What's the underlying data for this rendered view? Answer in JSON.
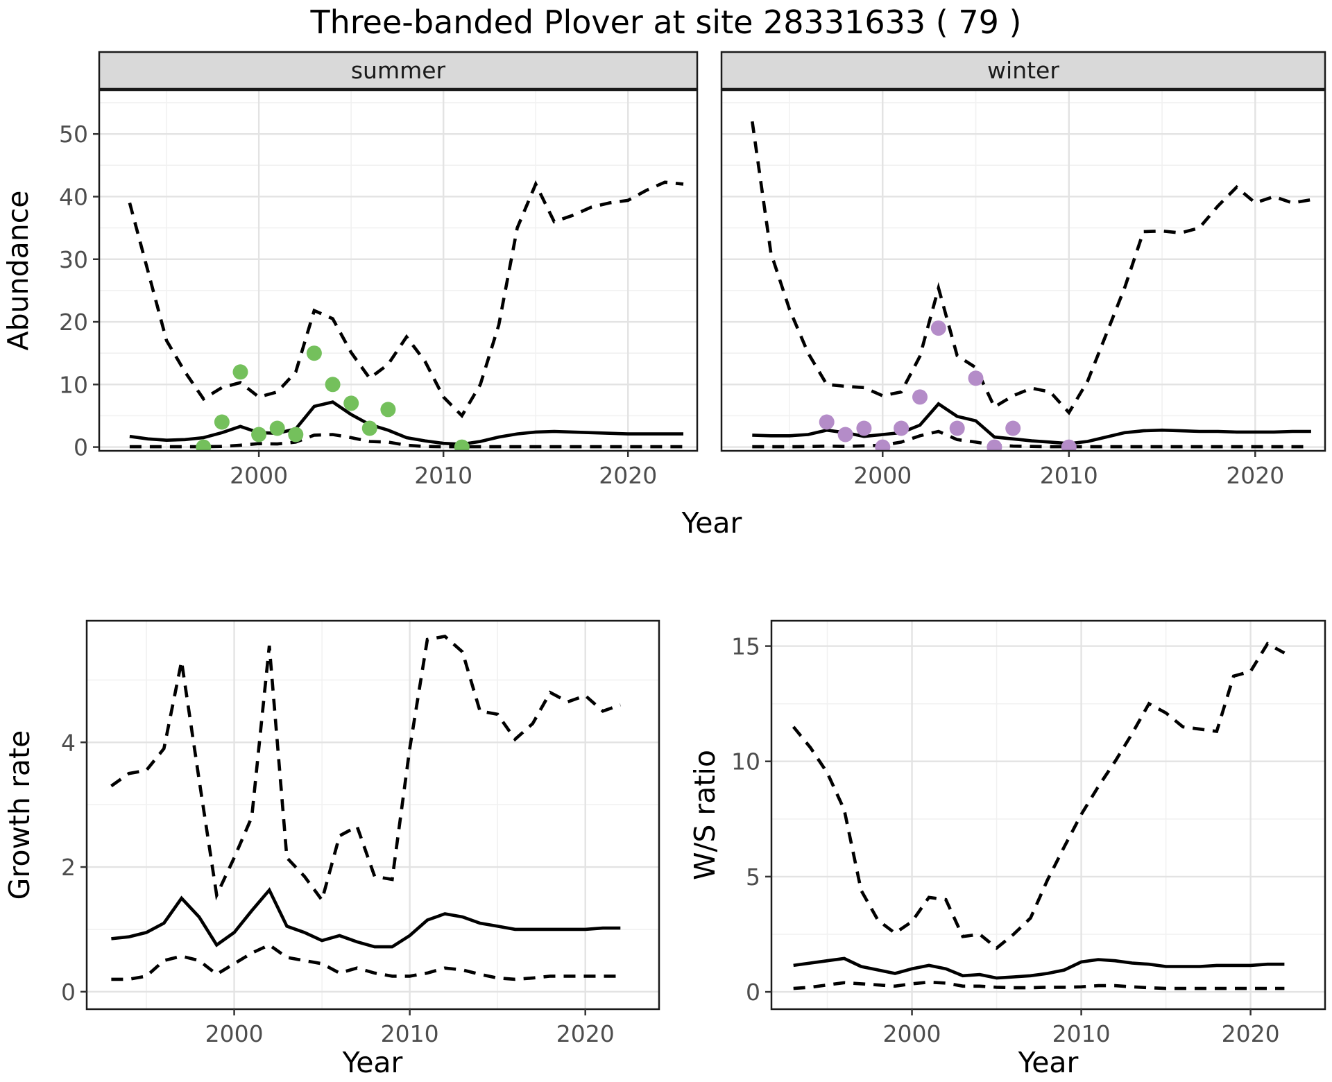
{
  "title": "Three-banded Plover at site 28331633 ( 79 )",
  "colors": {
    "summer_points": "#74c05c",
    "winter_points": "#b48cc8",
    "line": "#000000",
    "grid_major": "#e3e3e3",
    "grid_minor": "#f1f1f1",
    "strip_bg": "#d9d9d9",
    "panel_border": "#1a1a1a",
    "tick_label": "#4d4d4d"
  },
  "chart_data": [
    {
      "id": "abundance-summer",
      "type": "line",
      "facet": "summer",
      "ylabel": "Abundance",
      "xlabel": "Year",
      "grid": true,
      "legend": false,
      "x_ticks": [
        2000,
        2010,
        2020
      ],
      "x_minor": [
        1995,
        2005,
        2015
      ],
      "y_ticks": [
        0,
        10,
        20,
        30,
        40,
        50
      ],
      "y_minor": [
        5,
        15,
        25,
        35,
        45,
        55
      ],
      "xlim": [
        1991.35,
        2023.75
      ],
      "ylim": [
        -0.6,
        57.0
      ],
      "years": [
        1993,
        1994,
        1995,
        1996,
        1997,
        1998,
        1999,
        2000,
        2001,
        2002,
        2003,
        2004,
        2005,
        2006,
        2007,
        2008,
        2009,
        2010,
        2011,
        2012,
        2013,
        2014,
        2015,
        2016,
        2017,
        2018,
        2019,
        2020,
        2021,
        2022,
        2023
      ],
      "series": [
        {
          "name": "upper-ci",
          "style": "dashed",
          "values": [
            39,
            28,
            17,
            12,
            7.7,
            9.5,
            10.3,
            8.0,
            8.8,
            12,
            21.8,
            20.5,
            15.1,
            11,
            13.2,
            17.6,
            13.7,
            8,
            5,
            10,
            19.5,
            35,
            42,
            36,
            37,
            38.3,
            39,
            39.4,
            41,
            42.3,
            42
          ]
        },
        {
          "name": "median",
          "style": "solid",
          "values": [
            1.7,
            1.3,
            1.1,
            1.2,
            1.5,
            2.3,
            3.3,
            2.3,
            2.2,
            2.9,
            6.5,
            7.2,
            5.2,
            3.6,
            2.7,
            1.5,
            1.0,
            0.6,
            0.45,
            0.9,
            1.6,
            2.1,
            2.4,
            2.5,
            2.4,
            2.3,
            2.2,
            2.1,
            2.1,
            2.1,
            2.1
          ]
        },
        {
          "name": "lower-ci",
          "style": "dashed",
          "values": [
            0.05,
            0.05,
            0.05,
            0.05,
            0.05,
            0.1,
            0.3,
            0.55,
            0.5,
            0.8,
            1.9,
            2.0,
            1.5,
            0.9,
            0.8,
            0.3,
            0.1,
            0.05,
            0.05,
            0.05,
            0.05,
            0.05,
            0.05,
            0.05,
            0.05,
            0.05,
            0.05,
            0.05,
            0.05,
            0.05,
            0.05
          ]
        }
      ],
      "points": {
        "name": "observed-counts-summer",
        "color_key": "summer_points",
        "data": [
          [
            1997,
            0
          ],
          [
            1998,
            4
          ],
          [
            1999,
            12
          ],
          [
            2000,
            2
          ],
          [
            2001,
            3
          ],
          [
            2002,
            2
          ],
          [
            2003,
            15
          ],
          [
            2004,
            10
          ],
          [
            2005,
            7
          ],
          [
            2006,
            3
          ],
          [
            2007,
            6
          ],
          [
            2011,
            0
          ]
        ]
      }
    },
    {
      "id": "abundance-winter",
      "type": "line",
      "facet": "winter",
      "ylabel": "",
      "xlabel": "",
      "grid": true,
      "legend": false,
      "x_ticks": [
        2000,
        2010,
        2020
      ],
      "x_minor": [
        1995,
        2005,
        2015
      ],
      "y_ticks": [
        0,
        10,
        20,
        30,
        40,
        50
      ],
      "y_minor": [
        5,
        15,
        25,
        35,
        45,
        55
      ],
      "xlim": [
        1991.35,
        2023.75
      ],
      "ylim": [
        -0.6,
        57.0
      ],
      "years": [
        1993,
        1994,
        1995,
        1996,
        1997,
        1998,
        1999,
        2000,
        2001,
        2002,
        2003,
        2004,
        2005,
        2006,
        2007,
        2008,
        2009,
        2010,
        2011,
        2012,
        2013,
        2014,
        2015,
        2016,
        2017,
        2018,
        2019,
        2020,
        2021,
        2022,
        2023
      ],
      "series": [
        {
          "name": "upper-ci",
          "style": "dashed",
          "values": [
            52,
            31,
            22,
            15,
            10,
            9.7,
            9.5,
            8.2,
            8.8,
            14.5,
            25.4,
            14.6,
            12.7,
            6.4,
            8.2,
            9.4,
            8.8,
            5.5,
            10.5,
            18,
            25.5,
            34.4,
            34.5,
            34.2,
            35,
            38.5,
            41.5,
            39,
            40,
            39,
            39.5
          ]
        },
        {
          "name": "median",
          "style": "solid",
          "values": [
            1.9,
            1.8,
            1.8,
            2.0,
            2.7,
            2.3,
            1.7,
            2.0,
            2.3,
            3.5,
            6.9,
            4.9,
            4.2,
            1.6,
            1.3,
            1.0,
            0.8,
            0.55,
            0.9,
            1.6,
            2.3,
            2.6,
            2.7,
            2.6,
            2.5,
            2.5,
            2.4,
            2.4,
            2.4,
            2.5,
            2.5
          ]
        },
        {
          "name": "lower-ci",
          "style": "dashed",
          "values": [
            0.05,
            0.05,
            0.05,
            0.08,
            0.15,
            0.1,
            0.2,
            0.3,
            0.8,
            1.8,
            2.5,
            1.2,
            0.8,
            0.3,
            0.15,
            0.1,
            0.05,
            0.05,
            0.05,
            0.05,
            0.05,
            0.05,
            0.05,
            0.05,
            0.05,
            0.05,
            0.05,
            0.05,
            0.05,
            0.05,
            0.05
          ]
        }
      ],
      "points": {
        "name": "observed-counts-winter",
        "color_key": "winter_points",
        "data": [
          [
            1997,
            4
          ],
          [
            1998,
            2
          ],
          [
            1999,
            3
          ],
          [
            2000,
            0
          ],
          [
            2001,
            3
          ],
          [
            2002,
            8
          ],
          [
            2003,
            19
          ],
          [
            2004,
            3
          ],
          [
            2005,
            11
          ],
          [
            2006,
            0
          ],
          [
            2007,
            3
          ],
          [
            2010,
            0
          ]
        ]
      }
    },
    {
      "id": "growth-rate",
      "type": "line",
      "facet": "",
      "ylabel": "Growth rate",
      "xlabel": "Year",
      "grid": true,
      "legend": false,
      "x_ticks": [
        2000,
        2010,
        2020
      ],
      "x_minor": [
        1995,
        2005,
        2015
      ],
      "y_ticks": [
        0,
        2,
        4
      ],
      "y_minor": [
        1,
        3,
        5
      ],
      "xlim": [
        1991.6,
        2024.2
      ],
      "ylim": [
        -0.28,
        5.95
      ],
      "years": [
        1993,
        1994,
        1995,
        1996,
        1997,
        1998,
        1999,
        2000,
        2001,
        2002,
        2003,
        2004,
        2005,
        2006,
        2007,
        2008,
        2009,
        2010,
        2011,
        2012,
        2013,
        2014,
        2015,
        2016,
        2017,
        2018,
        2019,
        2020,
        2021,
        2022
      ],
      "series": [
        {
          "name": "upper-ci",
          "style": "dashed",
          "values": [
            3.3,
            3.5,
            3.55,
            3.9,
            5.3,
            3.4,
            1.55,
            2.15,
            2.8,
            5.55,
            2.15,
            1.85,
            1.47,
            2.5,
            2.65,
            1.85,
            1.8,
            3.9,
            5.65,
            5.7,
            5.45,
            4.5,
            4.45,
            4.05,
            4.3,
            4.8,
            4.65,
            4.75,
            4.5,
            4.6
          ]
        },
        {
          "name": "median",
          "style": "solid",
          "values": [
            0.85,
            0.88,
            0.95,
            1.1,
            1.5,
            1.2,
            0.75,
            0.95,
            1.3,
            1.63,
            1.05,
            0.95,
            0.82,
            0.9,
            0.8,
            0.72,
            0.72,
            0.9,
            1.15,
            1.25,
            1.2,
            1.1,
            1.05,
            1.0,
            1.0,
            1.0,
            1.0,
            1.0,
            1.02,
            1.02
          ]
        },
        {
          "name": "lower-ci",
          "style": "dashed",
          "values": [
            0.2,
            0.2,
            0.25,
            0.5,
            0.57,
            0.5,
            0.28,
            0.45,
            0.62,
            0.75,
            0.55,
            0.5,
            0.45,
            0.3,
            0.38,
            0.3,
            0.25,
            0.25,
            0.3,
            0.38,
            0.35,
            0.28,
            0.22,
            0.2,
            0.22,
            0.25,
            0.25,
            0.25,
            0.25,
            0.25
          ]
        }
      ],
      "points": null
    },
    {
      "id": "ws-ratio",
      "type": "line",
      "facet": "",
      "ylabel": "W/S ratio",
      "xlabel": "Year",
      "grid": true,
      "legend": false,
      "x_ticks": [
        2000,
        2010,
        2020
      ],
      "x_minor": [
        1995,
        2005,
        2015
      ],
      "y_ticks": [
        0,
        5,
        10,
        15
      ],
      "y_minor": [
        2.5,
        7.5,
        12.5
      ],
      "xlim": [
        1991.7,
        2024.4
      ],
      "ylim": [
        -0.75,
        16.1
      ],
      "years": [
        1993,
        1994,
        1995,
        1996,
        1997,
        1998,
        1999,
        2000,
        2001,
        2002,
        2003,
        2004,
        2005,
        2006,
        2007,
        2008,
        2009,
        2010,
        2011,
        2012,
        2013,
        2014,
        2015,
        2016,
        2017,
        2018,
        2019,
        2020,
        2021,
        2022
      ],
      "series": [
        {
          "name": "upper-ci",
          "style": "dashed",
          "values": [
            11.5,
            10.6,
            9.5,
            7.9,
            4.4,
            3.1,
            2.55,
            3.05,
            4.1,
            4.0,
            2.4,
            2.5,
            1.9,
            2.5,
            3.2,
            4.85,
            6.3,
            7.7,
            8.9,
            10.0,
            11.2,
            12.5,
            12.1,
            11.5,
            11.4,
            11.3,
            13.7,
            13.9,
            15.1,
            14.7
          ]
        },
        {
          "name": "median",
          "style": "solid",
          "values": [
            1.15,
            1.25,
            1.35,
            1.45,
            1.1,
            0.95,
            0.8,
            1.0,
            1.15,
            1.0,
            0.7,
            0.75,
            0.6,
            0.65,
            0.7,
            0.8,
            0.95,
            1.3,
            1.4,
            1.35,
            1.25,
            1.2,
            1.1,
            1.1,
            1.1,
            1.15,
            1.15,
            1.15,
            1.2,
            1.2
          ]
        },
        {
          "name": "lower-ci",
          "style": "dashed",
          "values": [
            0.15,
            0.2,
            0.3,
            0.4,
            0.35,
            0.3,
            0.25,
            0.35,
            0.42,
            0.38,
            0.25,
            0.25,
            0.2,
            0.18,
            0.18,
            0.2,
            0.2,
            0.22,
            0.27,
            0.27,
            0.22,
            0.18,
            0.15,
            0.15,
            0.15,
            0.15,
            0.15,
            0.15,
            0.15,
            0.15
          ]
        }
      ],
      "points": null
    }
  ]
}
